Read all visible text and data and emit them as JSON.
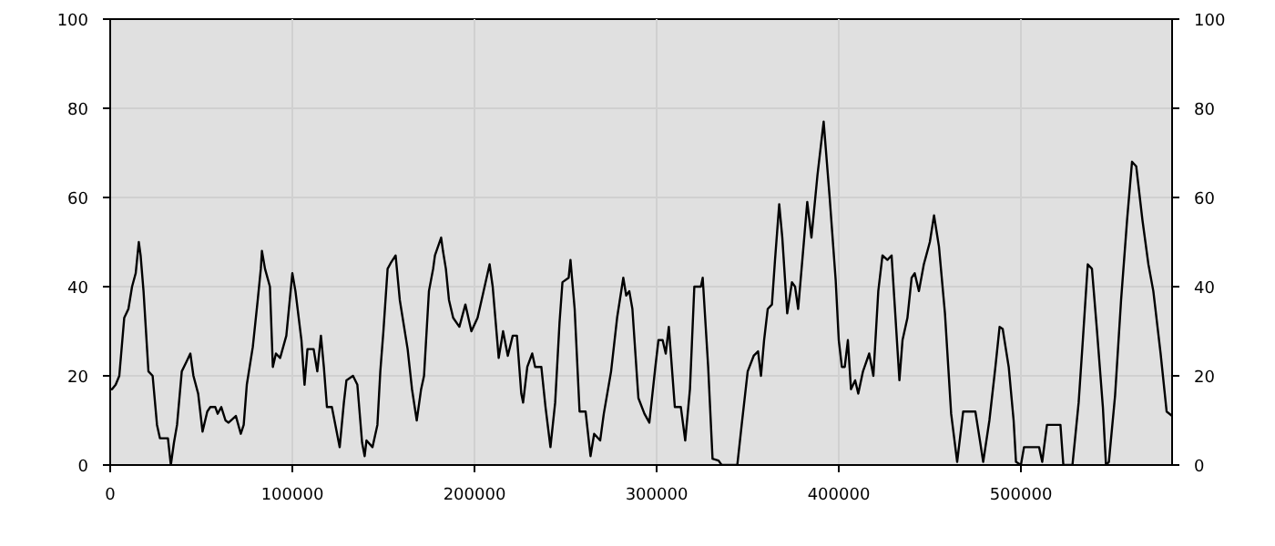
{
  "chart_data": {
    "type": "line",
    "x": [
      0,
      1000,
      3000,
      5000,
      7700,
      10000,
      12000,
      14000,
      15700,
      16700,
      18300,
      21000,
      23300,
      25700,
      27300,
      31700,
      33300,
      35000,
      36700,
      39300,
      41700,
      44000,
      45700,
      48300,
      50700,
      53300,
      55000,
      57700,
      59000,
      61000,
      63300,
      65000,
      69000,
      71700,
      73300,
      75000,
      78300,
      81000,
      82700,
      83300,
      85000,
      87700,
      89300,
      91000,
      93300,
      96700,
      100000,
      101700,
      105000,
      106700,
      108300,
      111700,
      113700,
      115700,
      117300,
      119000,
      121700,
      126000,
      128300,
      129700,
      133300,
      135700,
      138300,
      139700,
      140700,
      144000,
      146700,
      148300,
      150000,
      152300,
      154300,
      156700,
      159000,
      163300,
      165700,
      168300,
      170700,
      172300,
      175000,
      177300,
      178300,
      181700,
      182700,
      184300,
      186000,
      188300,
      191700,
      195000,
      198300,
      201700,
      205000,
      208300,
      210000,
      213300,
      215700,
      218300,
      221000,
      223300,
      225700,
      226700,
      229000,
      231700,
      233300,
      236700,
      239000,
      241700,
      244300,
      246700,
      248300,
      251700,
      252700,
      255000,
      257700,
      261000,
      263700,
      265700,
      269000,
      271000,
      275000,
      278300,
      281700,
      283300,
      285000,
      286700,
      290000,
      293300,
      296000,
      299300,
      301000,
      303300,
      305000,
      306700,
      310000,
      313300,
      315700,
      318300,
      320700,
      324300,
      325300,
      328300,
      330700,
      334000,
      335700,
      344300,
      346700,
      350000,
      353300,
      355700,
      357300,
      359000,
      361000,
      363300,
      365000,
      367300,
      369000,
      371700,
      374300,
      376000,
      377700,
      380000,
      382700,
      385000,
      388300,
      391700,
      395000,
      398300,
      400000,
      401700,
      403300,
      405000,
      406700,
      409000,
      410700,
      413300,
      416700,
      419000,
      421700,
      424000,
      426700,
      429000,
      430700,
      433300,
      435000,
      437700,
      440000,
      441700,
      444000,
      446700,
      450000,
      452300,
      455000,
      458300,
      461700,
      465000,
      468300,
      475000,
      477300,
      479300,
      482700,
      486000,
      488300,
      490000,
      493300,
      496000,
      497300,
      500000,
      501700,
      510000,
      511700,
      514300,
      521700,
      523300,
      528300,
      531700,
      534000,
      536700,
      539000,
      541700,
      545000,
      546700,
      548300,
      551700,
      555000,
      558300,
      561000,
      563300,
      566700,
      570000,
      572700,
      576700,
      580000,
      583000
    ],
    "values": [
      17,
      17,
      18,
      20,
      33,
      35,
      40,
      43,
      50,
      47,
      39,
      21,
      20,
      9,
      6,
      6,
      0,
      5,
      9,
      21,
      23,
      25,
      20,
      16,
      7.5,
      12,
      13,
      13,
      11.5,
      13,
      10,
      9.5,
      11,
      7,
      9,
      18,
      26.5,
      37,
      44,
      48,
      44,
      40,
      22,
      25,
      24,
      29,
      43,
      39,
      28,
      18,
      26,
      26,
      21,
      29,
      22,
      13,
      13,
      4,
      14,
      19,
      20,
      18,
      5,
      2,
      5.5,
      4,
      9,
      21,
      30,
      44,
      45.5,
      47,
      37,
      26,
      17,
      10,
      17,
      20,
      39,
      44,
      47,
      51,
      48,
      44,
      37,
      33,
      31,
      36,
      30,
      33,
      39,
      45,
      40,
      24,
      30,
      24.5,
      29,
      29,
      16,
      14,
      22,
      25,
      22,
      22,
      13,
      4,
      14,
      32,
      41,
      42,
      46,
      35,
      12,
      12,
      2,
      7,
      5.5,
      11.5,
      21,
      33,
      42,
      38,
      39,
      35,
      15,
      11.5,
      9.5,
      22,
      28,
      28,
      25,
      31,
      13,
      13,
      5.5,
      17,
      40,
      40,
      42,
      22,
      1.4,
      1,
      0,
      0,
      9,
      21,
      24.5,
      25.5,
      20,
      28,
      35,
      36,
      46,
      58.5,
      51,
      34,
      41,
      40,
      35,
      46,
      59,
      51,
      65,
      77,
      60,
      41.5,
      28,
      22,
      22,
      28,
      17,
      19,
      16,
      21,
      25,
      20,
      39,
      47,
      46,
      47,
      36,
      19,
      28,
      33,
      42,
      43,
      39,
      45,
      50,
      56,
      49,
      34,
      11.5,
      0.7,
      12,
      12,
      6,
      0.7,
      10,
      22,
      31,
      30.5,
      22,
      10,
      0.7,
      0,
      4,
      4,
      0.7,
      9,
      9,
      0,
      0,
      14,
      28,
      45,
      44,
      30.5,
      13,
      0,
      0.7,
      15.6,
      37,
      55,
      68,
      67,
      55,
      45,
      39,
      25,
      12,
      11
    ],
    "color": "#000000",
    "xlim": [
      0,
      583000
    ],
    "xticks": [
      0,
      100000,
      200000,
      300000,
      400000,
      500000
    ],
    "ylim": [
      0,
      100
    ],
    "yticks": [
      0,
      20,
      40,
      60,
      80,
      100
    ],
    "y2lim": [
      0,
      100
    ],
    "y2ticks": [
      0,
      20,
      40,
      60,
      80,
      100
    ],
    "grid": true
  }
}
